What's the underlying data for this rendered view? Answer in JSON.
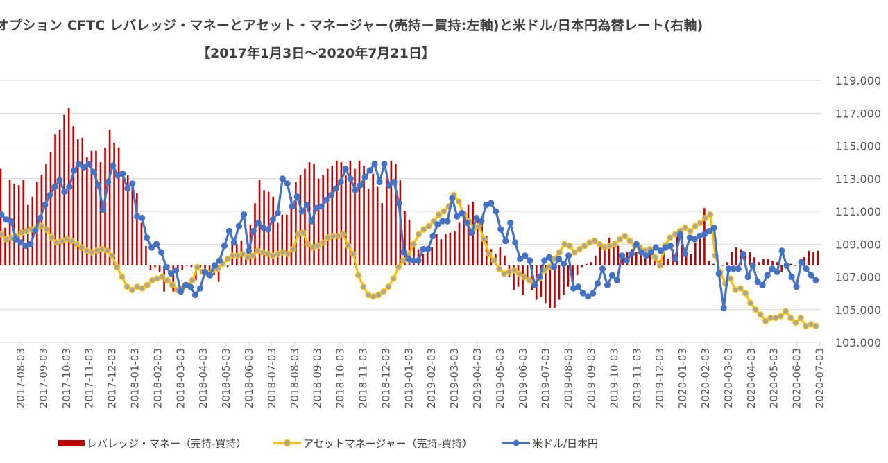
{
  "chart_data": {
    "type": "bar+line",
    "title": "オプション CFTC レバレッジ・マネーとアセット・マネージャー(売持－買持:左軸)と米ドル/日本円為替レート(右軸)",
    "subtitle": "【2017年1月3日～2020年7月21日】",
    "right_axis": {
      "ylim": [
        103,
        119
      ],
      "ticks": [
        "103.000",
        "105.000",
        "107.000",
        "109.000",
        "111.000",
        "113.000",
        "115.000",
        "117.000",
        "119.000"
      ]
    },
    "x_ticks": [
      "2017-08-03",
      "2017-09-03",
      "2017-10-03",
      "2017-11-03",
      "2017-12-03",
      "2018-01-03",
      "2018-02-03",
      "2018-03-03",
      "2018-04-03",
      "2018-05-03",
      "2018-06-03",
      "2018-07-03",
      "2018-08-03",
      "2018-09-03",
      "2018-10-03",
      "2018-11-03",
      "2018-12-03",
      "2019-01-03",
      "2019-02-03",
      "2019-03-03",
      "2019-04-03",
      "2019-05-03",
      "2019-06-03",
      "2019-07-03",
      "2019-08-03",
      "2019-09-03",
      "2019-10-03",
      "2019-11-03",
      "2019-12-03",
      "2020-01-03",
      "2020-02-03",
      "2020-03-03",
      "2020-04-03",
      "2020-05-03",
      "2020-06-03",
      "2020-07-03"
    ],
    "grid": true,
    "legend_position": "bottom",
    "series": [
      {
        "name": "レバレッジ・マネー（売持-買持）",
        "type": "bar",
        "axis": "left",
        "color": "#c00000",
        "values_in_right_axis_scale": [
          113.6,
          110.0,
          112.9,
          112.7,
          112.6,
          112.9,
          111.4,
          111.9,
          112.8,
          113.2,
          113.9,
          114.6,
          115.7,
          116.0,
          116.9,
          117.3,
          116.2,
          115.4,
          115.5,
          114.3,
          114.7,
          114.7,
          114.0,
          114.9,
          116.0,
          115.2,
          114.9,
          113.3,
          113.2,
          112.8,
          112.1,
          110.3,
          108.9,
          107.4,
          107.6,
          107.3,
          106.1,
          107.5,
          106.1,
          107.5,
          107.4,
          107.7,
          107.6,
          106.8,
          107.6,
          107.5,
          107.0,
          107.1,
          106.7,
          107.7,
          107.6,
          109.1,
          109.0,
          109.2,
          108.4,
          110.2,
          111.5,
          112.9,
          112.3,
          112.2,
          111.9,
          110.3,
          110.8,
          110.8,
          111.9,
          112.8,
          113.2,
          113.6,
          114.0,
          113.9,
          113.0,
          113.2,
          113.6,
          113.8,
          114.1,
          114.0,
          113.2,
          114.1,
          113.6,
          114.1,
          113.8,
          112.4,
          113.3,
          112.5,
          111.5,
          113.3,
          114.1,
          113.9,
          112.9,
          111.0,
          110.5,
          109.2,
          108.7,
          108.4,
          108.6,
          108.8,
          109.6,
          109.3,
          109.6,
          109.7,
          109.8,
          110.3,
          111.0,
          111.4,
          111.6,
          110.7,
          110.3,
          109.5,
          108.7,
          108.4,
          108.8,
          108.3,
          107.0,
          106.2,
          106.4,
          105.9,
          106.7,
          106.2,
          105.6,
          105.8,
          105.4,
          105.1,
          105.1,
          105.6,
          105.9,
          106.4,
          106.4,
          107.1,
          107.6,
          107.8,
          107.9,
          108.3,
          108.8,
          109.0,
          109.4,
          109.2,
          108.9,
          108.3,
          108.5,
          108.7,
          108.5,
          108.9,
          108.6,
          108.8,
          108.4,
          108.0,
          108.6,
          108.1,
          108.7,
          109.5,
          109.7,
          108.6,
          108.4,
          109.1,
          109.5,
          111.2,
          108.0,
          107.8,
          107.5,
          107.7,
          107.9,
          108.5,
          108.8,
          108.7,
          108.4,
          108.5,
          108.2,
          107.9,
          108.1,
          108.1,
          108.0,
          107.9,
          107.3,
          107.6,
          107.8,
          107.7,
          107.6,
          108.2,
          108.6,
          108.5,
          108.6
        ],
        "baseline_in_right_axis_scale": 107.7
      },
      {
        "name": "アセットマネージャー（売持-買持）",
        "type": "line",
        "axis": "left",
        "color": "#ffc000",
        "values_in_right_axis_scale": [
          109.6,
          109.3,
          109.4,
          109.5,
          109.7,
          109.8,
          109.9,
          110.0,
          110.1,
          109.9,
          109.4,
          109.1,
          109.2,
          109.3,
          109.2,
          109.0,
          108.8,
          108.6,
          108.5,
          108.6,
          108.7,
          108.6,
          108.3,
          107.6,
          107.0,
          106.4,
          106.2,
          106.4,
          106.3,
          106.5,
          106.8,
          106.9,
          107.0,
          106.8,
          106.5,
          106.2,
          106.3,
          106.5,
          106.8,
          107.6,
          107.3,
          107.2,
          107.4,
          107.5,
          107.8,
          108.1,
          108.3,
          108.3,
          108.4,
          108.2,
          108.3,
          108.6,
          108.5,
          108.4,
          108.3,
          108.4,
          108.5,
          108.4,
          108.7,
          109.6,
          109.7,
          109.0,
          108.8,
          108.9,
          109.1,
          109.4,
          109.5,
          109.5,
          109.6,
          108.9,
          108.4,
          107.1,
          106.4,
          105.9,
          105.8,
          105.9,
          106.1,
          106.4,
          106.9,
          107.6,
          108.0,
          108.3,
          109.0,
          109.6,
          109.9,
          110.1,
          110.4,
          110.8,
          111.0,
          111.3,
          112.0,
          111.6,
          110.8,
          110.4,
          110.0,
          110.1,
          109.3,
          108.4,
          108.0,
          107.5,
          107.2,
          107.3,
          107.4,
          107.2,
          107.0,
          106.8,
          106.6,
          106.9,
          107.4,
          107.6,
          108.1,
          108.5,
          109.0,
          108.9,
          108.5,
          108.7,
          108.9,
          109.1,
          109.2,
          109.0,
          108.8,
          108.9,
          109.0,
          109.3,
          109.5,
          109.2,
          108.9,
          108.8,
          108.6,
          108.7,
          108.2,
          107.7,
          108.9,
          109.4,
          109.6,
          109.8,
          110.0,
          109.8,
          110.1,
          110.3,
          110.6,
          110.8,
          108.3,
          107.3,
          106.6,
          106.9,
          106.2,
          106.3,
          106.0,
          105.4,
          105.0,
          104.7,
          104.3,
          104.5,
          104.5,
          104.6,
          104.9,
          104.5,
          104.2,
          104.5,
          104.0,
          104.1,
          104.0
        ]
      },
      {
        "name": "米ドル/日本円",
        "type": "line",
        "axis": "right",
        "color": "#4472c4",
        "values": [
          110.8,
          110.5,
          110.4,
          109.3,
          109.1,
          108.9,
          109.0,
          109.8,
          110.6,
          111.4,
          112.0,
          112.5,
          112.9,
          112.2,
          112.5,
          113.5,
          113.9,
          113.7,
          113.9,
          113.4,
          112.6,
          111.1,
          112.8,
          113.8,
          113.2,
          113.3,
          112.4,
          112.7,
          110.7,
          110.6,
          109.4,
          108.8,
          109.0,
          108.5,
          107.6,
          107.2,
          107.4,
          106.1,
          106.5,
          106.4,
          105.9,
          106.3,
          107.3,
          107.1,
          107.7,
          108.0,
          108.9,
          109.8,
          109.1,
          110.1,
          110.8,
          108.6,
          109.8,
          110.3,
          110.0,
          109.9,
          110.5,
          110.9,
          113.0,
          112.7,
          111.3,
          111.9,
          111.0,
          111.4,
          110.4,
          111.2,
          111.3,
          111.7,
          112.0,
          112.4,
          112.8,
          113.6,
          113.0,
          112.3,
          112.6,
          113.1,
          113.5,
          113.9,
          112.8,
          113.9,
          112.6,
          112.8,
          111.5,
          108.5,
          108.1,
          108.0,
          108.0,
          108.7,
          108.7,
          109.5,
          110.2,
          110.4,
          110.4,
          111.8,
          110.7,
          110.9,
          110.3,
          109.7,
          110.6,
          110.4,
          111.4,
          111.5,
          111.0,
          109.9,
          109.2,
          110.3,
          109.1,
          108.1,
          108.3,
          108.0,
          106.5,
          107.0,
          108.0,
          108.2,
          107.6,
          108.1,
          107.8,
          108.3,
          106.3,
          106.4,
          106.0,
          105.8,
          106.0,
          106.6,
          107.5,
          106.5,
          107.1,
          106.8,
          108.3,
          108.0,
          108.4,
          109.0,
          108.5,
          108.3,
          108.5,
          108.8,
          108.6,
          108.8,
          108.9,
          108.1,
          109.6,
          108.4,
          109.4,
          109.3,
          109.5,
          109.6,
          109.8,
          110.0,
          107.2,
          105.1,
          107.5,
          107.5,
          107.5,
          108.4,
          107.0,
          107.7,
          106.7,
          106.5,
          107.1,
          107.5,
          107.3,
          108.6,
          107.7,
          107.0,
          106.4,
          107.9,
          107.5,
          107.1,
          106.8
        ]
      }
    ]
  },
  "legend": {
    "lev": "レバレッジ・マネー（売持-買持）",
    "asset": "アセットマネージャー（売持-買持）",
    "usd": "米ドル/日本円"
  }
}
